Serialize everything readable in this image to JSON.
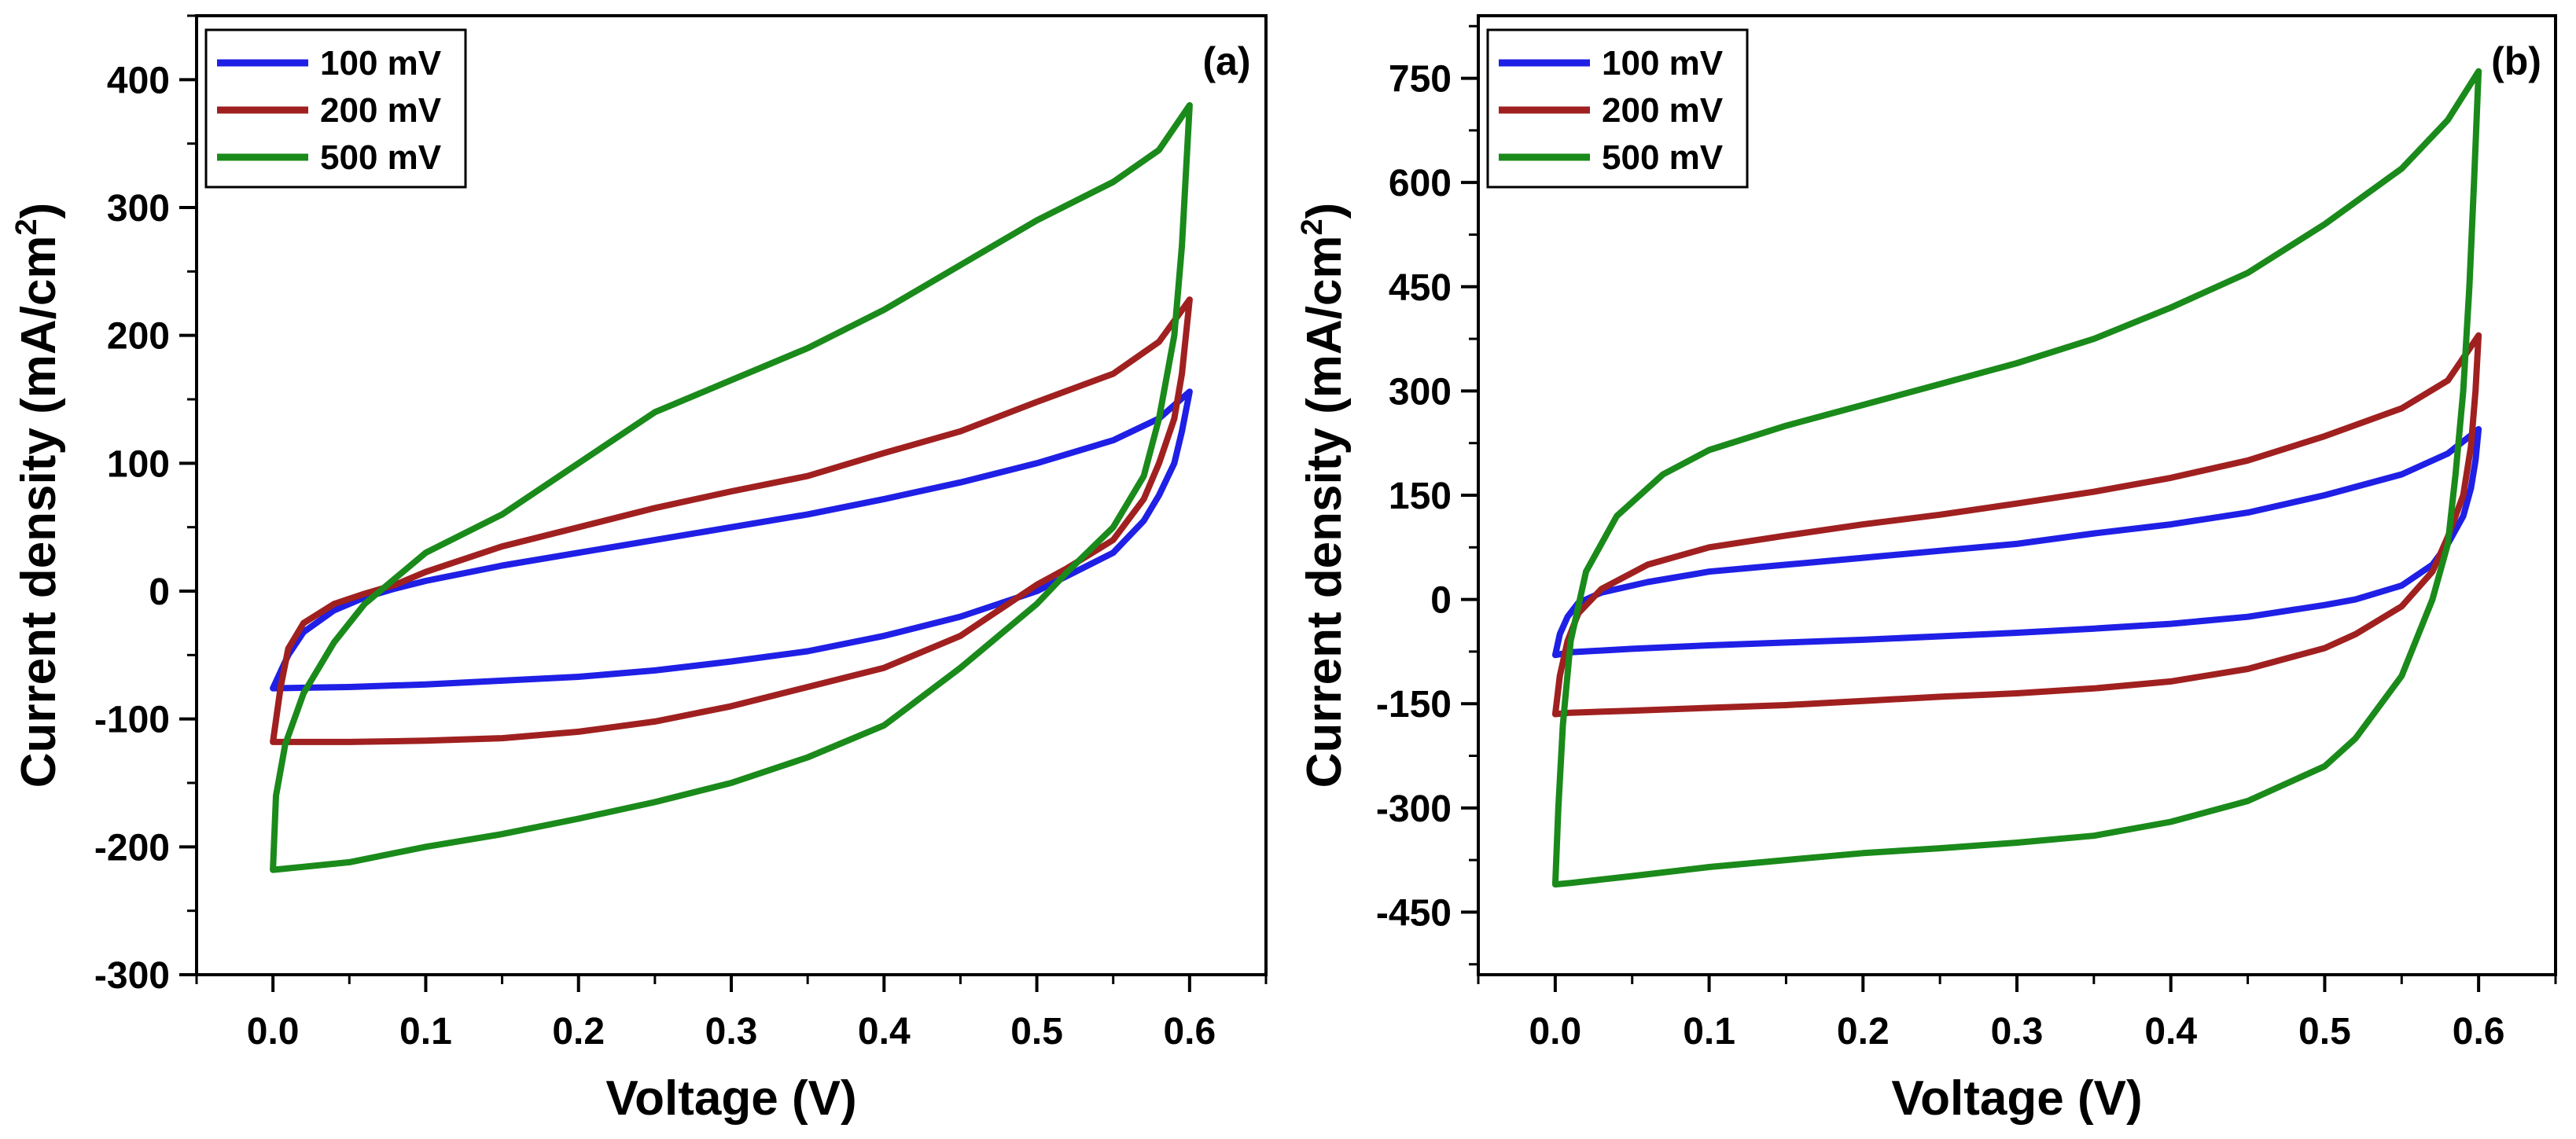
{
  "chart_data": [
    {
      "panel": "a",
      "type": "line",
      "panel_label": "(a)",
      "xlabel": "Voltage (V)",
      "ylabel": "Current density (mA/cm",
      "ylabel_sup": "2",
      "ylabel_close": ")",
      "xlim": [
        -0.05,
        0.65
      ],
      "ylim": [
        -300,
        450
      ],
      "x_ticks": [
        0.0,
        0.1,
        0.2,
        0.3,
        0.4,
        0.5,
        0.6
      ],
      "x_tick_labels": [
        "0.0",
        "0.1",
        "0.2",
        "0.3",
        "0.4",
        "0.5",
        "0.6"
      ],
      "y_ticks": [
        -300,
        -200,
        -100,
        0,
        100,
        200,
        300,
        400
      ],
      "y_tick_labels": [
        "-300",
        "-200",
        "-100",
        "0",
        "100",
        "200",
        "300",
        "400"
      ],
      "legend_position": "top-left",
      "series": [
        {
          "name": "100 mV",
          "color": "#1f1fe6",
          "upper": [
            [
              0.0,
              -76
            ],
            [
              0.01,
              -50
            ],
            [
              0.02,
              -32
            ],
            [
              0.04,
              -15
            ],
            [
              0.06,
              -5
            ],
            [
              0.08,
              2
            ],
            [
              0.1,
              8
            ],
            [
              0.15,
              20
            ],
            [
              0.2,
              30
            ],
            [
              0.25,
              40
            ],
            [
              0.3,
              50
            ],
            [
              0.35,
              60
            ],
            [
              0.4,
              72
            ],
            [
              0.45,
              85
            ],
            [
              0.5,
              100
            ],
            [
              0.55,
              118
            ],
            [
              0.58,
              135
            ],
            [
              0.6,
              156
            ]
          ],
          "lower": [
            [
              0.6,
              156
            ],
            [
              0.595,
              125
            ],
            [
              0.59,
              100
            ],
            [
              0.58,
              75
            ],
            [
              0.57,
              55
            ],
            [
              0.55,
              30
            ],
            [
              0.52,
              12
            ],
            [
              0.5,
              0
            ],
            [
              0.45,
              -20
            ],
            [
              0.4,
              -35
            ],
            [
              0.35,
              -47
            ],
            [
              0.3,
              -55
            ],
            [
              0.25,
              -62
            ],
            [
              0.2,
              -67
            ],
            [
              0.15,
              -70
            ],
            [
              0.1,
              -73
            ],
            [
              0.05,
              -75
            ],
            [
              0.0,
              -76
            ]
          ]
        },
        {
          "name": "200 mV",
          "color": "#a02020",
          "upper": [
            [
              0.0,
              -118
            ],
            [
              0.005,
              -75
            ],
            [
              0.01,
              -45
            ],
            [
              0.02,
              -25
            ],
            [
              0.04,
              -10
            ],
            [
              0.06,
              -2
            ],
            [
              0.08,
              5
            ],
            [
              0.1,
              15
            ],
            [
              0.15,
              35
            ],
            [
              0.2,
              50
            ],
            [
              0.25,
              65
            ],
            [
              0.3,
              78
            ],
            [
              0.35,
              90
            ],
            [
              0.4,
              108
            ],
            [
              0.45,
              125
            ],
            [
              0.5,
              148
            ],
            [
              0.55,
              170
            ],
            [
              0.58,
              195
            ],
            [
              0.6,
              228
            ]
          ],
          "lower": [
            [
              0.6,
              228
            ],
            [
              0.595,
              170
            ],
            [
              0.59,
              135
            ],
            [
              0.58,
              100
            ],
            [
              0.57,
              72
            ],
            [
              0.55,
              40
            ],
            [
              0.52,
              18
            ],
            [
              0.5,
              5
            ],
            [
              0.45,
              -35
            ],
            [
              0.4,
              -60
            ],
            [
              0.35,
              -75
            ],
            [
              0.3,
              -90
            ],
            [
              0.25,
              -102
            ],
            [
              0.2,
              -110
            ],
            [
              0.15,
              -115
            ],
            [
              0.1,
              -117
            ],
            [
              0.05,
              -118
            ],
            [
              0.0,
              -118
            ]
          ]
        },
        {
          "name": "500 mV",
          "color": "#1a8a1a",
          "upper": [
            [
              0.0,
              -218
            ],
            [
              0.002,
              -160
            ],
            [
              0.008,
              -120
            ],
            [
              0.02,
              -80
            ],
            [
              0.04,
              -40
            ],
            [
              0.06,
              -10
            ],
            [
              0.08,
              10
            ],
            [
              0.1,
              30
            ],
            [
              0.15,
              60
            ],
            [
              0.2,
              100
            ],
            [
              0.25,
              140
            ],
            [
              0.3,
              165
            ],
            [
              0.35,
              190
            ],
            [
              0.4,
              220
            ],
            [
              0.45,
              255
            ],
            [
              0.5,
              290
            ],
            [
              0.55,
              320
            ],
            [
              0.58,
              345
            ],
            [
              0.6,
              380
            ]
          ],
          "lower": [
            [
              0.6,
              380
            ],
            [
              0.595,
              270
            ],
            [
              0.59,
              200
            ],
            [
              0.58,
              135
            ],
            [
              0.57,
              90
            ],
            [
              0.55,
              50
            ],
            [
              0.52,
              15
            ],
            [
              0.5,
              -10
            ],
            [
              0.45,
              -60
            ],
            [
              0.4,
              -105
            ],
            [
              0.35,
              -130
            ],
            [
              0.3,
              -150
            ],
            [
              0.25,
              -165
            ],
            [
              0.2,
              -178
            ],
            [
              0.15,
              -190
            ],
            [
              0.1,
              -200
            ],
            [
              0.05,
              -212
            ],
            [
              0.0,
              -218
            ]
          ]
        }
      ]
    },
    {
      "panel": "b",
      "type": "line",
      "panel_label": "(b)",
      "xlabel": "Voltage (V)",
      "ylabel": "Current density (mA/cm",
      "ylabel_sup": "2",
      "ylabel_close": ")",
      "xlim": [
        -0.05,
        0.65
      ],
      "ylim": [
        -540,
        840
      ],
      "x_ticks": [
        0.0,
        0.1,
        0.2,
        0.3,
        0.4,
        0.5,
        0.6
      ],
      "x_tick_labels": [
        "0.0",
        "0.1",
        "0.2",
        "0.3",
        "0.4",
        "0.5",
        "0.6"
      ],
      "y_ticks": [
        -450,
        -300,
        -150,
        0,
        150,
        300,
        450,
        600,
        750
      ],
      "y_tick_labels": [
        "-450",
        "-300",
        "-150",
        "0",
        "150",
        "300",
        "450",
        "600",
        "750"
      ],
      "legend_position": "top-left",
      "series": [
        {
          "name": "100 mV",
          "color": "#1f1fe6",
          "upper": [
            [
              0.0,
              -80
            ],
            [
              0.003,
              -50
            ],
            [
              0.008,
              -25
            ],
            [
              0.015,
              -5
            ],
            [
              0.03,
              10
            ],
            [
              0.06,
              25
            ],
            [
              0.1,
              40
            ],
            [
              0.15,
              50
            ],
            [
              0.2,
              60
            ],
            [
              0.25,
              70
            ],
            [
              0.3,
              80
            ],
            [
              0.35,
              95
            ],
            [
              0.4,
              108
            ],
            [
              0.45,
              125
            ],
            [
              0.5,
              150
            ],
            [
              0.55,
              180
            ],
            [
              0.58,
              210
            ],
            [
              0.6,
              245
            ]
          ],
          "lower": [
            [
              0.6,
              245
            ],
            [
              0.598,
              200
            ],
            [
              0.595,
              160
            ],
            [
              0.59,
              120
            ],
            [
              0.58,
              80
            ],
            [
              0.57,
              50
            ],
            [
              0.55,
              20
            ],
            [
              0.52,
              0
            ],
            [
              0.5,
              -8
            ],
            [
              0.45,
              -25
            ],
            [
              0.4,
              -35
            ],
            [
              0.35,
              -42
            ],
            [
              0.3,
              -48
            ],
            [
              0.25,
              -53
            ],
            [
              0.2,
              -58
            ],
            [
              0.15,
              -62
            ],
            [
              0.1,
              -66
            ],
            [
              0.05,
              -71
            ],
            [
              0.01,
              -76
            ],
            [
              0.0,
              -80
            ]
          ]
        },
        {
          "name": "200 mV",
          "color": "#a02020",
          "upper": [
            [
              0.0,
              -165
            ],
            [
              0.003,
              -110
            ],
            [
              0.008,
              -60
            ],
            [
              0.015,
              -20
            ],
            [
              0.03,
              15
            ],
            [
              0.06,
              50
            ],
            [
              0.1,
              75
            ],
            [
              0.15,
              92
            ],
            [
              0.2,
              108
            ],
            [
              0.25,
              122
            ],
            [
              0.3,
              138
            ],
            [
              0.35,
              155
            ],
            [
              0.4,
              175
            ],
            [
              0.45,
              200
            ],
            [
              0.5,
              235
            ],
            [
              0.55,
              275
            ],
            [
              0.58,
              315
            ],
            [
              0.6,
              380
            ]
          ],
          "lower": [
            [
              0.6,
              380
            ],
            [
              0.598,
              300
            ],
            [
              0.595,
              220
            ],
            [
              0.59,
              150
            ],
            [
              0.58,
              90
            ],
            [
              0.57,
              40
            ],
            [
              0.55,
              -10
            ],
            [
              0.52,
              -50
            ],
            [
              0.5,
              -70
            ],
            [
              0.45,
              -100
            ],
            [
              0.4,
              -118
            ],
            [
              0.35,
              -128
            ],
            [
              0.3,
              -135
            ],
            [
              0.25,
              -140
            ],
            [
              0.2,
              -146
            ],
            [
              0.15,
              -152
            ],
            [
              0.1,
              -156
            ],
            [
              0.05,
              -160
            ],
            [
              0.01,
              -163
            ],
            [
              0.0,
              -165
            ]
          ]
        },
        {
          "name": "500 mV",
          "color": "#1a8a1a",
          "upper": [
            [
              0.0,
              -410
            ],
            [
              0.002,
              -300
            ],
            [
              0.005,
              -180
            ],
            [
              0.01,
              -60
            ],
            [
              0.02,
              40
            ],
            [
              0.04,
              120
            ],
            [
              0.07,
              180
            ],
            [
              0.1,
              215
            ],
            [
              0.15,
              250
            ],
            [
              0.2,
              280
            ],
            [
              0.25,
              310
            ],
            [
              0.3,
              340
            ],
            [
              0.35,
              375
            ],
            [
              0.4,
              420
            ],
            [
              0.45,
              470
            ],
            [
              0.5,
              540
            ],
            [
              0.55,
              620
            ],
            [
              0.58,
              690
            ],
            [
              0.6,
              760
            ]
          ],
          "lower": [
            [
              0.6,
              760
            ],
            [
              0.597,
              600
            ],
            [
              0.594,
              450
            ],
            [
              0.59,
              300
            ],
            [
              0.585,
              180
            ],
            [
              0.58,
              80
            ],
            [
              0.57,
              0
            ],
            [
              0.55,
              -110
            ],
            [
              0.52,
              -200
            ],
            [
              0.5,
              -240
            ],
            [
              0.45,
              -290
            ],
            [
              0.4,
              -320
            ],
            [
              0.35,
              -340
            ],
            [
              0.3,
              -350
            ],
            [
              0.25,
              -358
            ],
            [
              0.2,
              -365
            ],
            [
              0.15,
              -375
            ],
            [
              0.1,
              -385
            ],
            [
              0.05,
              -398
            ],
            [
              0.01,
              -408
            ],
            [
              0.0,
              -410
            ]
          ]
        }
      ]
    }
  ]
}
